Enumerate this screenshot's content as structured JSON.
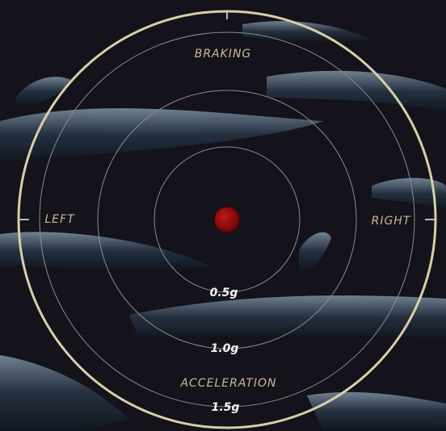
{
  "gauge": {
    "top_label": "BRAKING",
    "left_label": "LEFT",
    "right_label": "RIGHT",
    "bottom_label": "ACCELERATION",
    "ring_labels": [
      "0.5g",
      "1.0g",
      "1.5g"
    ]
  }
}
